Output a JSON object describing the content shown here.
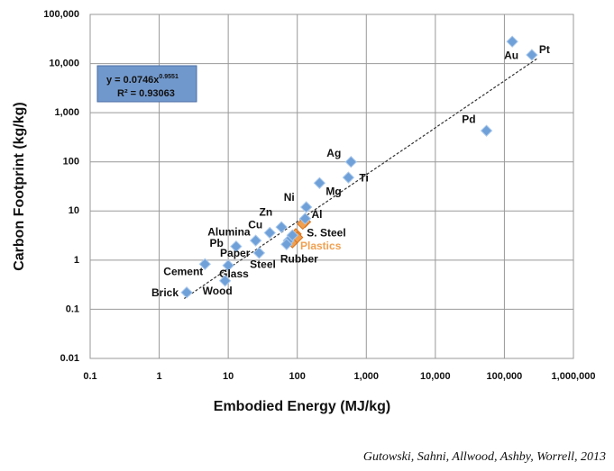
{
  "chart_data": {
    "type": "scatter",
    "x_label": "Embodied Energy (MJ/kg)",
    "y_label": "Carbon Footprint (kg/kg)",
    "log_x": true,
    "log_y": true,
    "grid": true,
    "xlim": [
      0.1,
      1000000
    ],
    "ylim": [
      0.01,
      100000
    ],
    "xticks": [
      0.1,
      1,
      10,
      100,
      {
        "value": 1000,
        "label": "1,000"
      },
      {
        "value": 10000,
        "label": "10,000"
      },
      {
        "value": 100000,
        "label": "100,000"
      },
      {
        "value": 1000000,
        "label": "1,000,000"
      }
    ],
    "yticks": [
      0.01,
      0.1,
      1,
      10,
      100,
      {
        "value": 1000,
        "label": "1,000"
      },
      {
        "value": 10000,
        "label": "10,000"
      },
      {
        "value": 100000,
        "label": "100,000"
      }
    ],
    "points": {
      "color": "#6fa0d8",
      "items": [
        {
          "label": "Au",
          "x": 130000,
          "y": 28000
        },
        {
          "label": "Pt",
          "x": 250000,
          "y": 15000
        },
        {
          "label": "Pd",
          "x": 55000,
          "y": 430
        },
        {
          "label": "Ag",
          "x": 600,
          "y": 100
        },
        {
          "label": "Ti",
          "x": 550,
          "y": 48
        },
        {
          "label": "Mg",
          "x": 210,
          "y": 37
        },
        {
          "label": "Ni",
          "x": 135,
          "y": 12
        },
        {
          "label": "Zn",
          "x": 59,
          "y": 4.7
        },
        {
          "label": "Al",
          "x": 130,
          "y": 7
        },
        {
          "label": "Cu",
          "x": 40,
          "y": 3.6
        },
        {
          "label": "Alumina",
          "x": 25,
          "y": 2.5
        },
        {
          "label": "Pb",
          "x": 13,
          "y": 1.9
        },
        {
          "label": "Paper",
          "x": 28,
          "y": 1.4
        },
        {
          "label": "Steel",
          "x": 75,
          "y": 2.5
        },
        {
          "label": "S. Steel",
          "x": 85,
          "y": 3.2
        },
        {
          "label": "Rubber",
          "x": 70,
          "y": 2.1
        },
        {
          "label": "Glass",
          "x": 10,
          "y": 0.78
        },
        {
          "label": "Wood",
          "x": 9,
          "y": 0.38
        },
        {
          "label": "Cement",
          "x": 4.6,
          "y": 0.83
        },
        {
          "label": "Brick",
          "x": 2.5,
          "y": 0.22
        }
      ]
    },
    "plastics": {
      "label": "Plastics",
      "color": "#f0a050",
      "x": [
        80,
        90,
        95,
        85,
        100,
        130,
        120
      ],
      "y": [
        2.6,
        3,
        3.4,
        2.3,
        2.9,
        6,
        5.5
      ]
    },
    "trendline": {
      "x": [
        2.3,
        300000
      ],
      "coefficient": 0.0746,
      "exponent": 0.9551
    },
    "equation": {
      "text": "y = 0.0746x",
      "superscript": "0.9551",
      "r_squared": "R² = 0.93063"
    },
    "source": "Gutowski, Sahni, Allwood, Ashby, Worrell, 2013"
  }
}
